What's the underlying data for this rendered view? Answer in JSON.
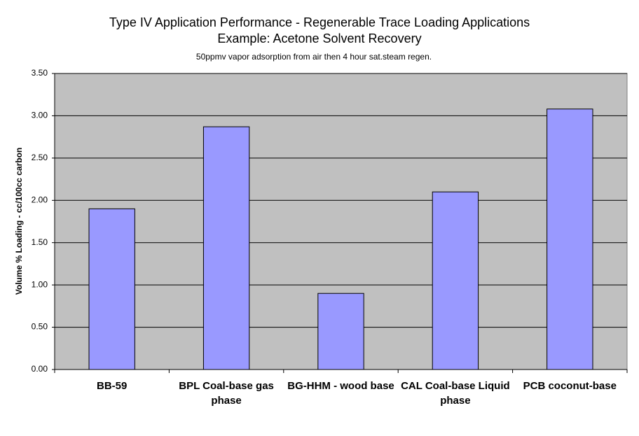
{
  "chart_data": {
    "type": "bar",
    "title": [
      "Type IV Application Performance - Regenerable Trace Loading Applications",
      "Example: Acetone Solvent Recovery"
    ],
    "subtitle": "50ppmv vapor adsorption from air then 4 hour sat.steam regen.",
    "y_label": "Volume % Loading - cc/100cc carbon",
    "categories": [
      "BB-59",
      "BPL Coal-base gas phase",
      "BG-HHM - wood base",
      "CAL Coal-base Liquid phase",
      "PCB coconut-base"
    ],
    "values": [
      1.9,
      2.87,
      0.9,
      2.1,
      3.08
    ],
    "color": "#9999ff",
    "ylim": [
      0,
      3.5
    ],
    "yticks": [
      {
        "value": 0,
        "label": "0.00"
      },
      {
        "value": 0.5,
        "label": "0.50"
      },
      {
        "value": 1,
        "label": "1.00"
      },
      {
        "value": 1.5,
        "label": "1.50"
      },
      {
        "value": 2,
        "label": "2.00"
      },
      {
        "value": 2.5,
        "label": "2.50"
      },
      {
        "value": 3,
        "label": "3.00"
      },
      {
        "value": 3.5,
        "label": "3.50"
      }
    ],
    "grid": true
  }
}
